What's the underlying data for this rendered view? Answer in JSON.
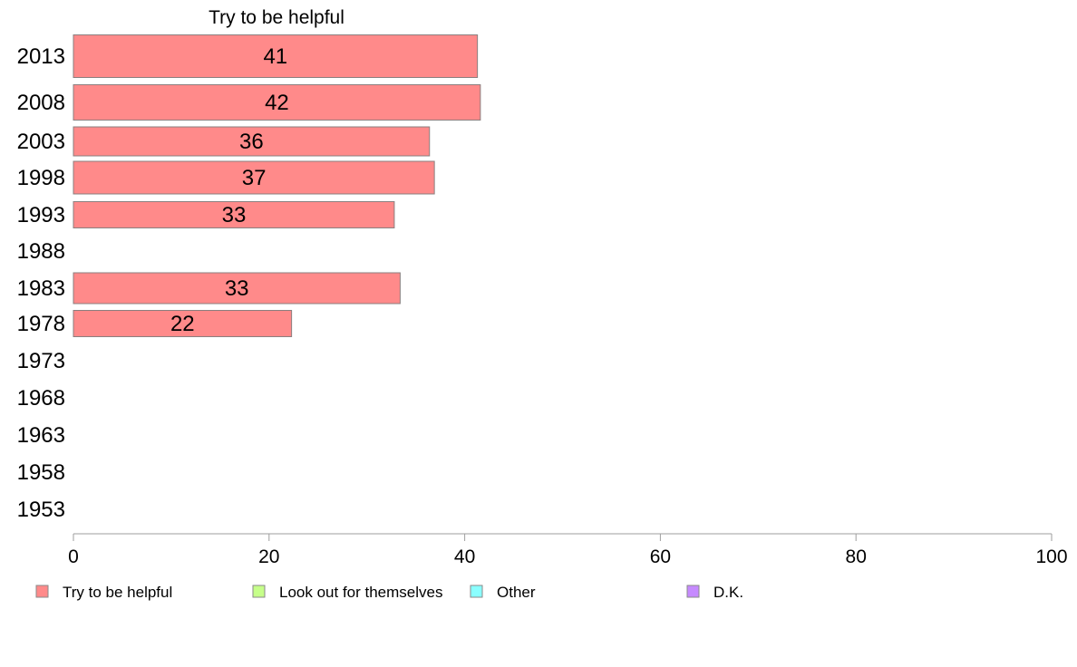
{
  "chart_data": {
    "type": "bar",
    "orientation": "horizontal",
    "title": "Try to be helpful",
    "categories": [
      "2013",
      "2008",
      "2003",
      "1998",
      "1993",
      "1988",
      "1983",
      "1978",
      "1973",
      "1968",
      "1963",
      "1958",
      "1953"
    ],
    "series": [
      {
        "name": "Try to be helpful",
        "color": "#ff8a8a",
        "values": [
          41.3,
          41.6,
          36.4,
          36.9,
          32.8,
          null,
          33.4,
          22.3,
          null,
          null,
          null,
          null,
          null
        ],
        "labels": [
          "41",
          "42",
          "36",
          "37",
          "33",
          "",
          "33",
          "22",
          "",
          "",
          "",
          "",
          ""
        ]
      }
    ],
    "xlim": [
      0,
      100
    ],
    "xticks": [
      0,
      20,
      40,
      60,
      80,
      100
    ],
    "xlabel": "",
    "ylabel": "",
    "grid": false,
    "legend": {
      "placement": "bottom",
      "entries": [
        {
          "label": "Try to be helpful",
          "color": "#ff8a8a"
        },
        {
          "label": "Look out for themselves",
          "color": "#c6ff8a"
        },
        {
          "label": "Other",
          "color": "#8affff"
        },
        {
          "label": "D.K.",
          "color": "#c68aff"
        }
      ]
    }
  }
}
